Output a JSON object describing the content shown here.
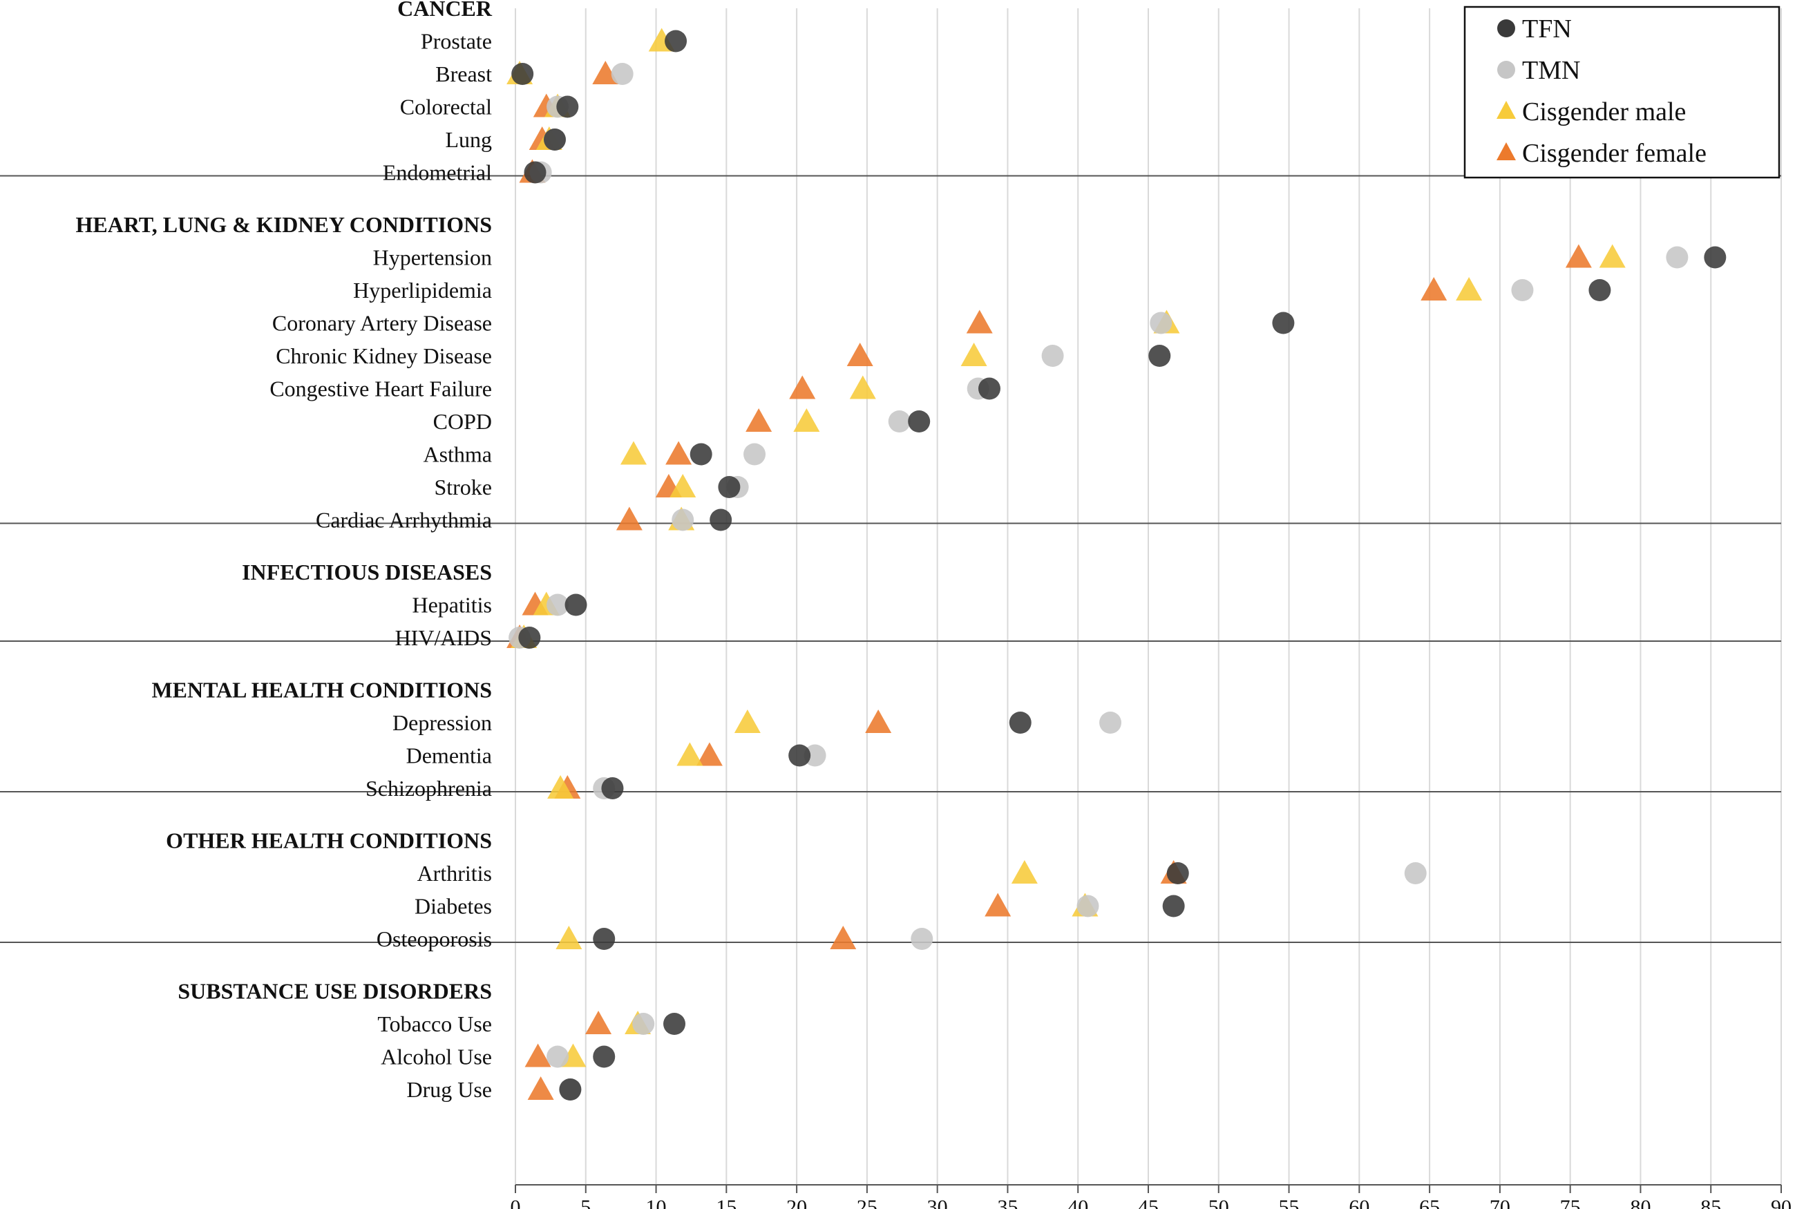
{
  "chart_data": {
    "type": "scatter",
    "title": "",
    "xlabel": "",
    "ylabel": "",
    "xlim": [
      0,
      90
    ],
    "x_ticks": [
      0,
      5,
      10,
      15,
      20,
      25,
      30,
      35,
      40,
      45,
      50,
      55,
      60,
      65,
      70,
      75,
      80,
      85,
      90
    ],
    "grid": "vertical",
    "legend_position": "top-right",
    "series": [
      {
        "name": "TFN",
        "marker": "circle",
        "color": "#3a3a3a"
      },
      {
        "name": "TMN",
        "marker": "circle",
        "color": "#c6c6c6"
      },
      {
        "name": "Cisgender male",
        "marker": "triangle",
        "color": "#f7cb3a"
      },
      {
        "name": "Cisgender female",
        "marker": "triangle",
        "color": "#ec7a2c"
      }
    ],
    "groups": [
      {
        "label": "CANCER",
        "items": [
          {
            "label": "Prostate",
            "values": [
              11.4,
              null,
              10.4,
              null
            ]
          },
          {
            "label": "Breast",
            "values": [
              0.5,
              7.6,
              0.3,
              6.4
            ]
          },
          {
            "label": "Colorectal",
            "values": [
              3.7,
              3.0,
              3.0,
              2.2
            ]
          },
          {
            "label": "Lung",
            "values": [
              2.8,
              2.8,
              2.4,
              1.9
            ]
          },
          {
            "label": "Endometrial",
            "values": [
              1.4,
              1.8,
              null,
              1.2
            ]
          }
        ]
      },
      {
        "label": "HEART, LUNG & KIDNEY CONDITIONS",
        "items": [
          {
            "label": "Hypertension",
            "values": [
              85.3,
              82.6,
              78.0,
              75.6
            ]
          },
          {
            "label": "Hyperlipidemia",
            "values": [
              77.1,
              71.6,
              67.8,
              65.3
            ]
          },
          {
            "label": "Coronary Artery Disease",
            "values": [
              54.6,
              45.9,
              46.3,
              33.0
            ]
          },
          {
            "label": "Chronic Kidney Disease",
            "values": [
              45.8,
              38.2,
              32.6,
              24.5
            ]
          },
          {
            "label": "Congestive Heart Failure",
            "values": [
              33.7,
              32.9,
              24.7,
              20.4
            ]
          },
          {
            "label": "COPD",
            "values": [
              28.7,
              27.3,
              20.7,
              17.3
            ]
          },
          {
            "label": "Asthma",
            "values": [
              13.2,
              17.0,
              8.4,
              11.6
            ]
          },
          {
            "label": "Stroke",
            "values": [
              15.2,
              15.8,
              11.9,
              10.9
            ]
          },
          {
            "label": "Cardiac Arrhythmia",
            "values": [
              14.6,
              11.9,
              11.8,
              8.1
            ]
          }
        ]
      },
      {
        "label": "INFECTIOUS DISEASES",
        "items": [
          {
            "label": "Hepatitis",
            "values": [
              4.3,
              3.0,
              2.2,
              1.4
            ]
          },
          {
            "label": "HIV/AIDS",
            "values": [
              1.0,
              0.3,
              0.6,
              0.3
            ]
          }
        ]
      },
      {
        "label": "MENTAL HEALTH CONDITIONS",
        "items": [
          {
            "label": "Depression",
            "values": [
              35.9,
              42.3,
              16.5,
              25.8
            ]
          },
          {
            "label": "Dementia",
            "values": [
              20.2,
              21.3,
              12.4,
              13.8
            ]
          },
          {
            "label": "Schizophrenia",
            "values": [
              6.9,
              6.3,
              3.2,
              3.7
            ]
          }
        ]
      },
      {
        "label": "OTHER HEALTH CONDITIONS",
        "items": [
          {
            "label": "Arthritis",
            "values": [
              47.1,
              64.0,
              36.2,
              46.8
            ]
          },
          {
            "label": "Diabetes",
            "values": [
              46.8,
              40.7,
              40.5,
              34.3
            ]
          },
          {
            "label": "Osteoporosis",
            "values": [
              6.3,
              28.9,
              3.8,
              23.3
            ]
          }
        ]
      },
      {
        "label": "SUBSTANCE USE DISORDERS",
        "items": [
          {
            "label": "Tobacco Use",
            "values": [
              11.3,
              9.1,
              8.7,
              5.9
            ]
          },
          {
            "label": "Alcohol Use",
            "values": [
              6.3,
              3.0,
              4.1,
              1.6
            ]
          },
          {
            "label": "Drug Use",
            "values": [
              3.9,
              3.9,
              null,
              1.8
            ]
          }
        ]
      }
    ]
  }
}
